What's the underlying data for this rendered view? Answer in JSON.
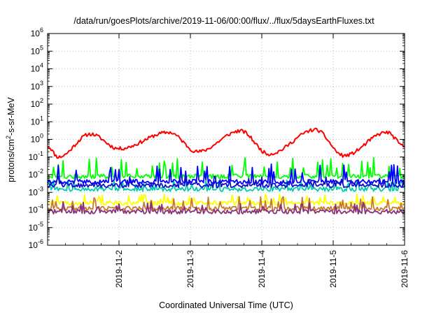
{
  "chart_data": {
    "type": "line",
    "title": "/data/run/goesPlots/archive/2019-11-06/00:00/flux/../flux/5daysEarthFluxes.txt",
    "xlabel": "Coordinated Universal Time (UTC)",
    "ylabel_main": "protons/cm",
    "ylabel_sup": "2",
    "ylabel_rest": "-s-sr-MeV",
    "y_scale": "log",
    "ylim": [
      1e-06,
      1000000.0
    ],
    "xlim": [
      "2019-11-01T00:00",
      "2019-11-06T00:00"
    ],
    "grid": true,
    "legend": "none",
    "y_ticks": [
      {
        "base": "10",
        "exp": "-6"
      },
      {
        "base": "10",
        "exp": "-5"
      },
      {
        "base": "10",
        "exp": "-4"
      },
      {
        "base": "10",
        "exp": "-3"
      },
      {
        "base": "10",
        "exp": "-2"
      },
      {
        "base": "10",
        "exp": "-1"
      },
      {
        "base": "10",
        "exp": "0"
      },
      {
        "base": "10",
        "exp": "1"
      },
      {
        "base": "10",
        "exp": "2"
      },
      {
        "base": "10",
        "exp": "3"
      },
      {
        "base": "10",
        "exp": "4"
      },
      {
        "base": "10",
        "exp": "5"
      },
      {
        "base": "10",
        "exp": "6"
      }
    ],
    "x_ticks": [
      "2019-11-2",
      "2019-11-3",
      "2019-11-4",
      "2019-11-5",
      "2019-11-6"
    ],
    "series": [
      {
        "color": "#ff0000",
        "kind": "slow",
        "base": -0.5,
        "amp": 0.75,
        "period_days": 1.0,
        "phase": 2.4,
        "noise": 0.1,
        "seed": 11,
        "anchors": [
          [
            0.0,
            0.4
          ],
          [
            0.15,
            0.1
          ],
          [
            0.6,
            2.0
          ],
          [
            1.0,
            0.3
          ],
          [
            1.7,
            2.5
          ],
          [
            2.1,
            0.2
          ],
          [
            2.7,
            3.0
          ],
          [
            3.1,
            0.15
          ],
          [
            3.75,
            3.5
          ],
          [
            4.15,
            0.12
          ],
          [
            4.75,
            2.5
          ],
          [
            5.0,
            0.4
          ]
        ]
      },
      {
        "color": "#00ff00",
        "kind": "spiky",
        "base": 0.008,
        "spike_max": 0.1,
        "seed": 21
      },
      {
        "color": "#00ccaa",
        "kind": "spiky",
        "base": 0.0015,
        "spike_max": 0.005,
        "seed": 31
      },
      {
        "color": "#0000ff",
        "kind": "spiky",
        "base": 0.004,
        "spike_max": 0.04,
        "seed": 41
      },
      {
        "color": "#1010cc",
        "kind": "spiky",
        "base": 0.0025,
        "spike_max": 0.008,
        "seed": 47
      },
      {
        "color": "#ffff00",
        "kind": "spiky",
        "base": 0.00025,
        "spike_max": 0.0008,
        "seed": 51
      },
      {
        "color": "#c87832",
        "kind": "spiky",
        "base": 0.00012,
        "spike_max": 0.0006,
        "seed": 61
      },
      {
        "color": "#883377",
        "kind": "spiky",
        "base": 8e-05,
        "spike_max": 0.0003,
        "seed": 71
      }
    ]
  }
}
